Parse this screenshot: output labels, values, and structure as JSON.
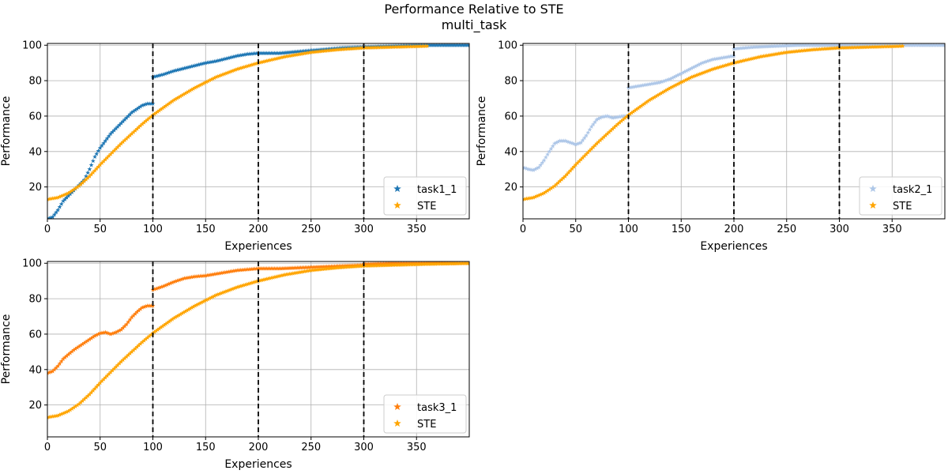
{
  "figure": {
    "title": "Performance Relative to STE",
    "subtitle": "multi_task"
  },
  "colors": {
    "task1_1": "#1f77b4",
    "task2_1": "#aec7e8",
    "task3_1": "#ff7f0e",
    "STE": "#ffa500",
    "boundary": "#000000",
    "grid": "#b0b0b0"
  },
  "chart_data": [
    {
      "type": "scatter",
      "panel": "top-left",
      "xlabel": "Experiences",
      "ylabel": "Performance",
      "xlim": [
        0,
        400
      ],
      "ylim": [
        2,
        101
      ],
      "xticks": [
        0,
        50,
        100,
        150,
        200,
        250,
        300,
        350
      ],
      "yticks": [
        20,
        40,
        60,
        80,
        100
      ],
      "grid": true,
      "marker": "star",
      "task_boundaries": [
        100,
        200,
        300
      ],
      "legend": {
        "placement": "lower right",
        "entries": [
          "task1_1",
          "STE"
        ]
      },
      "series": [
        {
          "name": "task1_1",
          "color_key": "task1_1",
          "segments": [
            {
              "x": [
                0,
                5,
                10,
                15,
                20,
                25,
                30,
                35,
                40,
                45,
                50,
                55,
                60,
                65,
                70,
                75,
                80,
                85,
                90,
                95,
                100
              ],
              "y": [
                2,
                3,
                7,
                12,
                15,
                18,
                21,
                24,
                30,
                37,
                42,
                46,
                50,
                53,
                56,
                59,
                62,
                64,
                66,
                67,
                67
              ]
            },
            {
              "x": [
                100,
                110,
                120,
                130,
                140,
                150,
                160,
                170,
                180,
                190,
                200
              ],
              "y": [
                82,
                83.5,
                85.5,
                87,
                88.5,
                90,
                91,
                92.5,
                94,
                95,
                95.5
              ]
            },
            {
              "x": [
                200,
                220,
                240,
                260,
                280,
                300
              ],
              "y": [
                95.5,
                95.5,
                96.5,
                97.5,
                98.5,
                99
              ]
            },
            {
              "x": [
                300,
                325,
                350,
                375,
                400
              ],
              "y": [
                99,
                99.5,
                100,
                100,
                100
              ]
            }
          ]
        },
        {
          "name": "STE",
          "color_key": "STE",
          "segments": [
            {
              "x": [
                0,
                10,
                20,
                30,
                40,
                50,
                60,
                70,
                80,
                90,
                100,
                120,
                140,
                160,
                180,
                200,
                225,
                250,
                275,
                300,
                330,
                360
              ],
              "y": [
                13,
                14,
                16.5,
                20.5,
                26,
                32.5,
                38.5,
                44.5,
                50,
                55.5,
                60.5,
                69,
                76,
                82,
                86.5,
                90,
                93.5,
                96,
                97.5,
                98.5,
                99,
                99.5
              ]
            }
          ]
        }
      ]
    },
    {
      "type": "scatter",
      "panel": "top-right",
      "xlabel": "Experiences",
      "ylabel": "Performance",
      "xlim": [
        0,
        400
      ],
      "ylim": [
        2,
        101
      ],
      "xticks": [
        0,
        50,
        100,
        150,
        200,
        250,
        300,
        350
      ],
      "yticks": [
        20,
        40,
        60,
        80,
        100
      ],
      "grid": true,
      "marker": "star",
      "task_boundaries": [
        100,
        200,
        300
      ],
      "legend": {
        "placement": "lower right",
        "entries": [
          "task2_1",
          "STE"
        ]
      },
      "series": [
        {
          "name": "task2_1",
          "color_key": "task2_1",
          "segments": [
            {
              "x": [
                0,
                5,
                10,
                15,
                20,
                25,
                30,
                35,
                40,
                45,
                50,
                55,
                60,
                65,
                70,
                75,
                80,
                85,
                90,
                95,
                100
              ],
              "y": [
                31,
                30,
                29.5,
                31,
                35,
                40,
                44.5,
                46,
                46,
                45,
                44,
                45,
                49,
                54,
                58,
                59.5,
                60,
                59,
                59.5,
                60,
                60
              ]
            },
            {
              "x": [
                100,
                110,
                120,
                130,
                140,
                150,
                160,
                170,
                180,
                190,
                200
              ],
              "y": [
                76,
                77,
                78,
                79,
                81,
                84,
                87,
                90,
                92,
                93,
                94
              ]
            },
            {
              "x": [
                200,
                220,
                240,
                260,
                280,
                300
              ],
              "y": [
                98,
                99,
                99.5,
                100,
                100,
                100
              ]
            },
            {
              "x": [
                300,
                325,
                350,
                375,
                400
              ],
              "y": [
                100,
                100,
                100,
                100,
                100
              ]
            }
          ]
        },
        {
          "name": "STE",
          "color_key": "STE",
          "segments": [
            {
              "x": [
                0,
                10,
                20,
                30,
                40,
                50,
                60,
                70,
                80,
                90,
                100,
                120,
                140,
                160,
                180,
                200,
                225,
                250,
                275,
                300,
                330,
                360
              ],
              "y": [
                13,
                14,
                16.5,
                20.5,
                26,
                32.5,
                38.5,
                44.5,
                50,
                55.5,
                60.5,
                69,
                76,
                82,
                86.5,
                90,
                93.5,
                96,
                97.5,
                98.5,
                99,
                99.5
              ]
            }
          ]
        }
      ]
    },
    {
      "type": "scatter",
      "panel": "bottom-left",
      "xlabel": "Experiences",
      "ylabel": "Performance",
      "xlim": [
        0,
        400
      ],
      "ylim": [
        2,
        101
      ],
      "xticks": [
        0,
        50,
        100,
        150,
        200,
        250,
        300,
        350
      ],
      "yticks": [
        20,
        40,
        60,
        80,
        100
      ],
      "grid": true,
      "marker": "star",
      "task_boundaries": [
        100,
        200,
        300
      ],
      "legend": {
        "placement": "lower right",
        "entries": [
          "task3_1",
          "STE"
        ]
      },
      "series": [
        {
          "name": "task3_1",
          "color_key": "task3_1",
          "segments": [
            {
              "x": [
                0,
                5,
                10,
                15,
                20,
                25,
                30,
                35,
                40,
                45,
                50,
                55,
                60,
                65,
                70,
                75,
                80,
                85,
                90,
                95,
                100
              ],
              "y": [
                38,
                39,
                42,
                46,
                48.5,
                51,
                53,
                55,
                57,
                59,
                60.5,
                61,
                60,
                61,
                62.5,
                65.5,
                69.5,
                72.5,
                75,
                76,
                76
              ]
            },
            {
              "x": [
                100,
                110,
                120,
                130,
                140,
                150,
                160,
                170,
                180,
                190,
                200
              ],
              "y": [
                85,
                87,
                89.5,
                91.5,
                92.5,
                93,
                94,
                95,
                96,
                96.5,
                97
              ]
            },
            {
              "x": [
                200,
                220,
                240,
                260,
                280,
                300
              ],
              "y": [
                97,
                97,
                97.5,
                98,
                98.5,
                99
              ]
            },
            {
              "x": [
                300,
                325,
                350,
                375,
                400
              ],
              "y": [
                99.5,
                100,
                100,
                100,
                100
              ]
            }
          ]
        },
        {
          "name": "STE",
          "color_key": "STE",
          "segments": [
            {
              "x": [
                0,
                10,
                20,
                30,
                40,
                50,
                60,
                70,
                80,
                90,
                100,
                120,
                140,
                160,
                180,
                200,
                225,
                250,
                275,
                300,
                330,
                360,
                400
              ],
              "y": [
                13,
                14,
                16.5,
                20.5,
                26,
                32.5,
                38.5,
                44.5,
                50,
                55.5,
                60.5,
                69,
                76,
                82,
                86.5,
                90,
                93.5,
                96,
                97.5,
                98.5,
                99,
                99.5,
                100
              ]
            }
          ]
        }
      ]
    }
  ]
}
